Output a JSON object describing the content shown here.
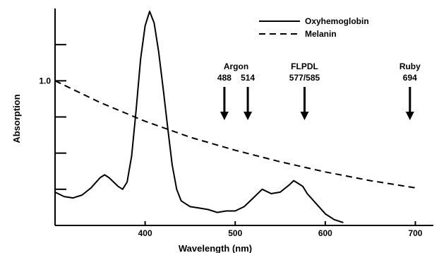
{
  "chart_data": {
    "type": "line",
    "xlabel": "Wavelength (nm)",
    "ylabel": "Absorption",
    "xlim": [
      300,
      720
    ],
    "ylim": [
      0,
      1.5
    ],
    "x_ticks": [
      400,
      500,
      600,
      700
    ],
    "y_ticks": [
      0.25,
      0.5,
      0.75,
      1.0,
      1.25
    ],
    "y_tick_labels": [
      {
        "value": 1.0,
        "label": "1.0"
      }
    ],
    "grid": false,
    "legend": {
      "position": "top-right",
      "entries": [
        {
          "name": "Oxyhemoglobin",
          "style": "solid"
        },
        {
          "name": "Melanin",
          "style": "dashed"
        }
      ]
    },
    "series": [
      {
        "name": "Oxyhemoglobin",
        "style": "solid",
        "x": [
          300,
          310,
          320,
          330,
          340,
          350,
          355,
          360,
          365,
          370,
          375,
          380,
          385,
          390,
          395,
          400,
          405,
          410,
          415,
          420,
          425,
          430,
          435,
          440,
          445,
          450,
          460,
          470,
          480,
          490,
          500,
          510,
          520,
          530,
          540,
          550,
          560,
          565,
          570,
          575,
          580,
          590,
          600,
          610,
          620
        ],
        "y": [
          0.23,
          0.2,
          0.19,
          0.21,
          0.26,
          0.33,
          0.35,
          0.33,
          0.3,
          0.27,
          0.25,
          0.3,
          0.48,
          0.8,
          1.15,
          1.38,
          1.48,
          1.4,
          1.2,
          0.95,
          0.68,
          0.42,
          0.25,
          0.17,
          0.15,
          0.13,
          0.12,
          0.11,
          0.09,
          0.1,
          0.1,
          0.13,
          0.19,
          0.25,
          0.22,
          0.23,
          0.28,
          0.31,
          0.29,
          0.27,
          0.22,
          0.15,
          0.08,
          0.04,
          0.02
        ]
      },
      {
        "name": "Melanin",
        "style": "dashed",
        "x": [
          300,
          350,
          400,
          450,
          500,
          550,
          600,
          650,
          700
        ],
        "y": [
          1.0,
          0.85,
          0.72,
          0.61,
          0.52,
          0.44,
          0.37,
          0.31,
          0.26
        ]
      }
    ],
    "annotations": [
      {
        "id": "argon-488",
        "x": 488,
        "group": "Argon",
        "label": "488"
      },
      {
        "id": "argon-514",
        "x": 514,
        "group": "Argon",
        "label": "514"
      },
      {
        "id": "flpdl",
        "x": 577,
        "group": "FLPDL",
        "label": "577/585"
      },
      {
        "id": "ruby",
        "x": 694,
        "group": "Ruby",
        "label": "694"
      }
    ],
    "annotation_groups": [
      {
        "id": "argon",
        "label": "Argon"
      },
      {
        "id": "flpdl",
        "label": "FLPDL"
      },
      {
        "id": "ruby",
        "label": "Ruby"
      }
    ]
  }
}
